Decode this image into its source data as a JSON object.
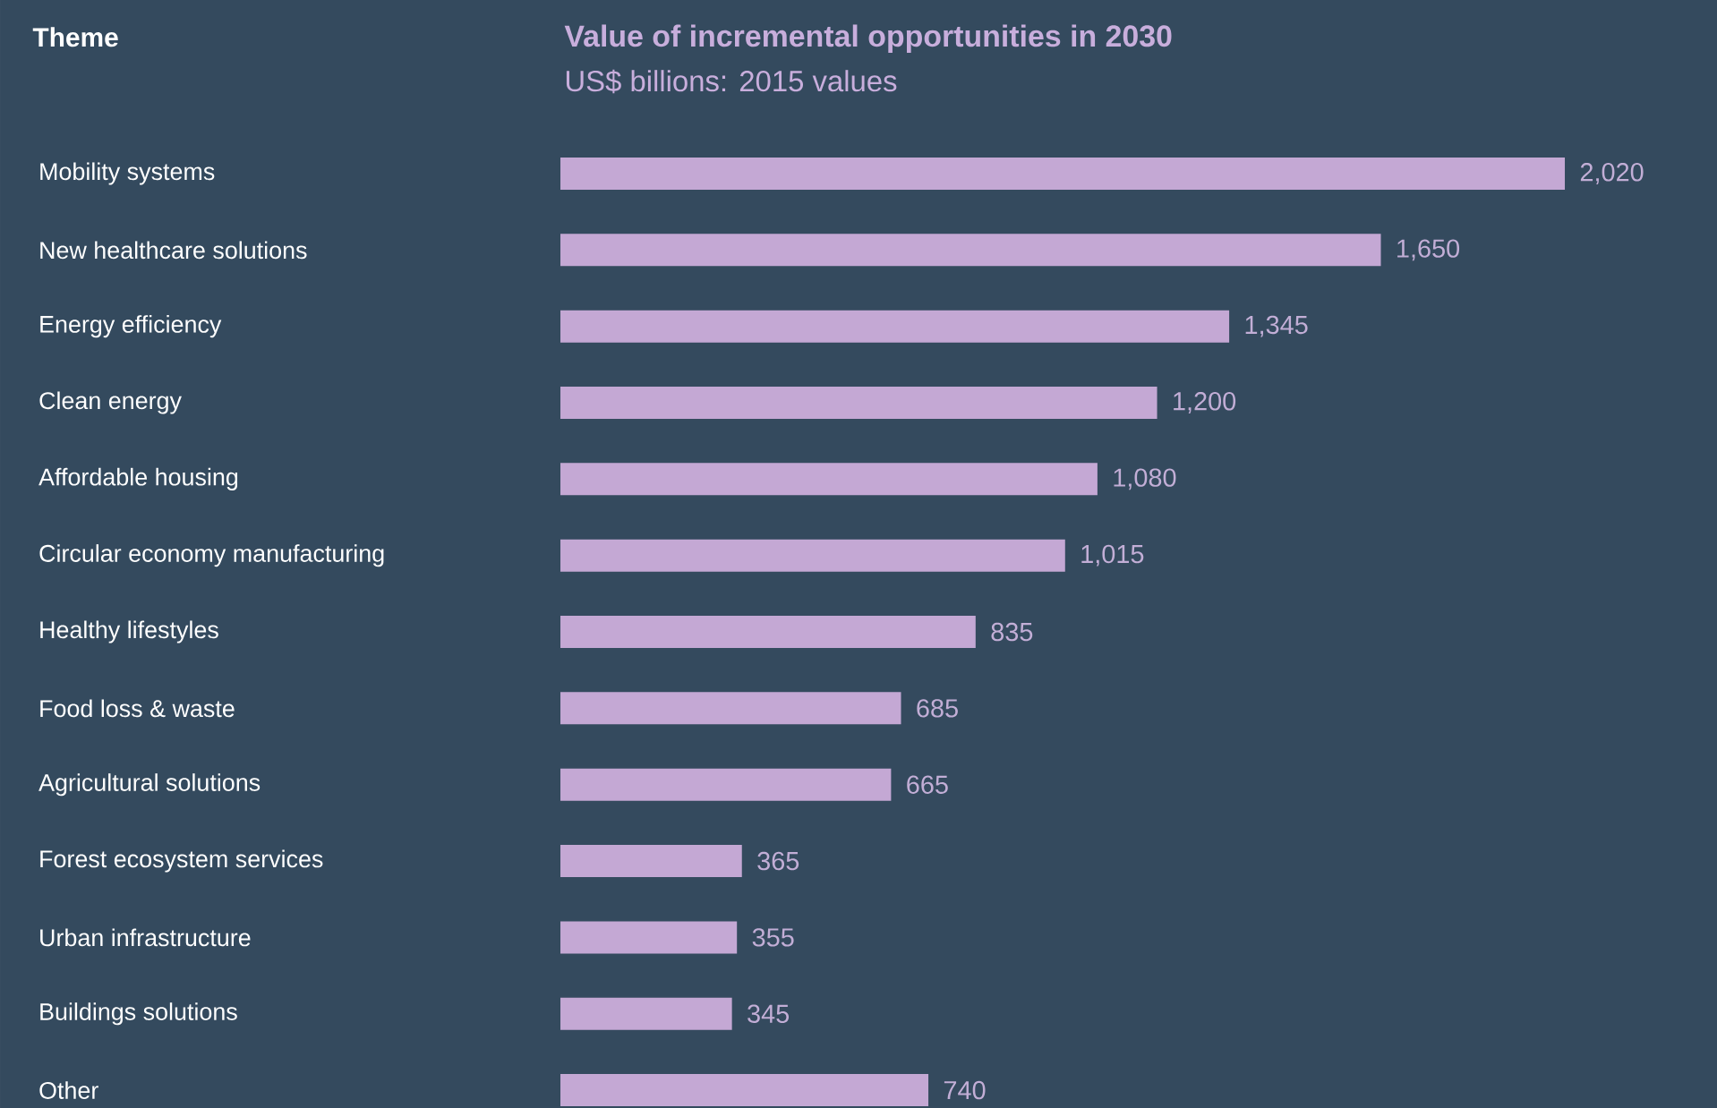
{
  "chart_data": {
    "type": "bar",
    "orientation": "horizontal",
    "title": "Value of incremental opportunities in 2030",
    "subtitle": "US$ billions: 2015 values",
    "annotations": [
      "Theme"
    ],
    "categories": [
      "Mobility systems",
      "New healthcare solutions",
      "Energy efficiency",
      "Clean energy",
      "Affordable housing",
      "Circular economy manufacturing",
      "Healthy lifestyles",
      "Food loss & waste",
      "Agricultural solutions",
      "Forest ecosystem services",
      "Urban infrastructure",
      "Buildings solutions",
      "Other"
    ],
    "values": [
      2020,
      1650,
      1345,
      1200,
      1080,
      1015,
      835,
      685,
      665,
      365,
      355,
      345,
      740
    ],
    "value_labels": [
      "2,020",
      "1,650",
      "1,345",
      "1,200",
      "1,080",
      "1,015",
      "835",
      "685",
      "665",
      "365",
      "355",
      "345",
      "740"
    ],
    "color": "#c4a8d4"
  }
}
